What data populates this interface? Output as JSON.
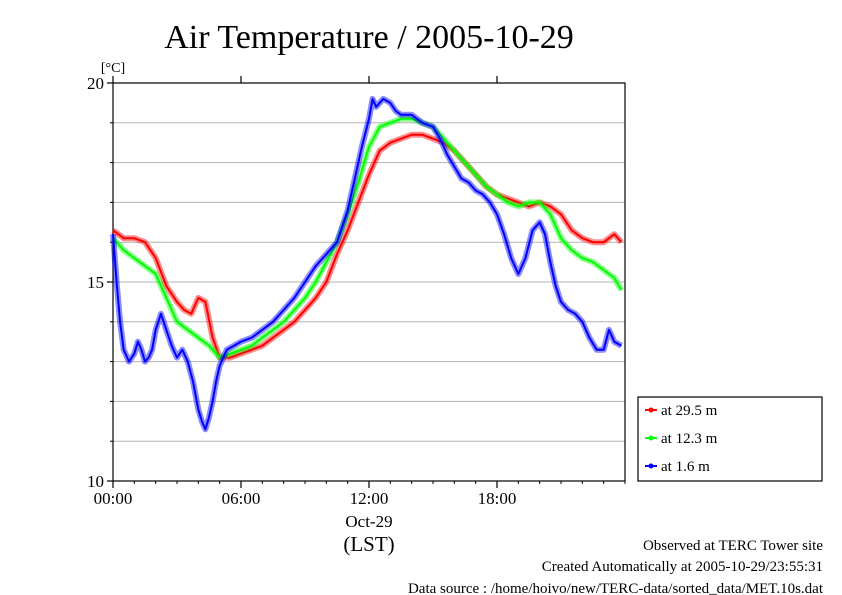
{
  "chart_data": {
    "type": "line",
    "title": "Air Temperature / 2005-10-29",
    "ylabel": "[°C]",
    "xlabel": "(LST)",
    "date_label": "Oct-29",
    "ylim": [
      10,
      20
    ],
    "yticks": [
      "10",
      "15",
      "20"
    ],
    "xlim": [
      "00:00",
      "24:00"
    ],
    "xticks": [
      "00:00",
      "06:00",
      "12:00",
      "18:00"
    ],
    "grid": true,
    "legend_position": "lower-right, outside plot",
    "series": [
      {
        "name": "at 29.5 m",
        "color": "#ff0000",
        "x": [
          "00:00",
          "00:30",
          "01:00",
          "01:30",
          "02:00",
          "02:30",
          "03:00",
          "03:20",
          "03:40",
          "04:00",
          "04:20",
          "04:40",
          "05:00",
          "05:30",
          "06:00",
          "06:30",
          "07:00",
          "07:30",
          "08:00",
          "08:30",
          "09:00",
          "09:30",
          "10:00",
          "10:30",
          "11:00",
          "11:30",
          "12:00",
          "12:30",
          "13:00",
          "13:30",
          "14:00",
          "14:30",
          "15:00",
          "15:30",
          "16:00",
          "16:30",
          "17:00",
          "17:30",
          "18:00",
          "18:30",
          "19:00",
          "19:30",
          "20:00",
          "20:30",
          "21:00",
          "21:30",
          "22:00",
          "22:30",
          "23:00",
          "23:30",
          "23:50"
        ],
        "values": [
          16.3,
          16.1,
          16.1,
          16.0,
          15.6,
          14.9,
          14.5,
          14.3,
          14.2,
          14.6,
          14.5,
          13.6,
          13.1,
          13.1,
          13.2,
          13.3,
          13.4,
          13.6,
          13.8,
          14.0,
          14.3,
          14.6,
          15.0,
          15.7,
          16.3,
          17.0,
          17.7,
          18.3,
          18.5,
          18.6,
          18.7,
          18.7,
          18.6,
          18.5,
          18.3,
          18.0,
          17.7,
          17.4,
          17.2,
          17.1,
          17.0,
          16.9,
          17.0,
          16.9,
          16.7,
          16.3,
          16.1,
          16.0,
          16.0,
          16.2,
          16.0
        ]
      },
      {
        "name": "at 12.3 m",
        "color": "#00ff00",
        "x": [
          "00:00",
          "00:30",
          "01:00",
          "01:30",
          "02:00",
          "02:30",
          "03:00",
          "03:30",
          "04:00",
          "04:30",
          "05:00",
          "05:30",
          "06:00",
          "06:30",
          "07:00",
          "07:30",
          "08:00",
          "08:30",
          "09:00",
          "09:30",
          "10:00",
          "10:30",
          "11:00",
          "11:30",
          "12:00",
          "12:30",
          "13:00",
          "13:30",
          "14:00",
          "14:30",
          "15:00",
          "15:30",
          "16:00",
          "16:30",
          "17:00",
          "17:30",
          "18:00",
          "18:30",
          "19:00",
          "19:30",
          "20:00",
          "20:30",
          "21:00",
          "21:30",
          "22:00",
          "22:30",
          "23:00",
          "23:30",
          "23:50"
        ],
        "values": [
          16.1,
          15.8,
          15.6,
          15.4,
          15.2,
          14.6,
          14.0,
          13.8,
          13.6,
          13.4,
          13.1,
          13.2,
          13.3,
          13.4,
          13.6,
          13.8,
          14.0,
          14.3,
          14.6,
          15.0,
          15.5,
          16.0,
          16.7,
          17.5,
          18.4,
          18.9,
          19.0,
          19.1,
          19.1,
          19.0,
          18.9,
          18.6,
          18.3,
          18.0,
          17.7,
          17.4,
          17.2,
          17.0,
          16.9,
          17.0,
          17.0,
          16.7,
          16.1,
          15.8,
          15.6,
          15.5,
          15.3,
          15.1,
          14.8
        ]
      },
      {
        "name": "at 1.6 m",
        "color": "#0000ff",
        "x": [
          "00:00",
          "00:10",
          "00:20",
          "00:30",
          "00:45",
          "01:00",
          "01:10",
          "01:20",
          "01:30",
          "01:40",
          "01:50",
          "02:00",
          "02:15",
          "02:30",
          "02:45",
          "03:00",
          "03:15",
          "03:30",
          "03:45",
          "04:00",
          "04:10",
          "04:20",
          "04:30",
          "04:40",
          "04:50",
          "05:00",
          "05:20",
          "05:40",
          "06:00",
          "06:30",
          "07:00",
          "07:30",
          "08:00",
          "08:30",
          "09:00",
          "09:30",
          "10:00",
          "10:30",
          "11:00",
          "11:20",
          "11:40",
          "12:00",
          "12:10",
          "12:20",
          "12:40",
          "13:00",
          "13:15",
          "13:30",
          "14:00",
          "14:30",
          "15:00",
          "15:20",
          "15:40",
          "16:00",
          "16:20",
          "16:40",
          "17:00",
          "17:20",
          "17:40",
          "18:00",
          "18:20",
          "18:40",
          "19:00",
          "19:20",
          "19:40",
          "20:00",
          "20:15",
          "20:30",
          "20:45",
          "21:00",
          "21:20",
          "21:40",
          "22:00",
          "22:20",
          "22:40",
          "23:00",
          "23:15",
          "23:30",
          "23:50"
        ],
        "values": [
          16.2,
          15.0,
          14.0,
          13.3,
          13.0,
          13.2,
          13.5,
          13.3,
          13.0,
          13.1,
          13.3,
          13.8,
          14.2,
          13.8,
          13.4,
          13.1,
          13.3,
          13.0,
          12.5,
          11.8,
          11.5,
          11.3,
          11.6,
          12.0,
          12.5,
          12.9,
          13.3,
          13.4,
          13.5,
          13.6,
          13.8,
          14.0,
          14.3,
          14.6,
          15.0,
          15.4,
          15.7,
          16.0,
          16.8,
          17.6,
          18.4,
          19.1,
          19.6,
          19.4,
          19.6,
          19.5,
          19.3,
          19.2,
          19.2,
          19.0,
          18.9,
          18.6,
          18.2,
          17.9,
          17.6,
          17.5,
          17.3,
          17.2,
          17.0,
          16.7,
          16.2,
          15.6,
          15.2,
          15.6,
          16.3,
          16.5,
          16.2,
          15.5,
          14.9,
          14.5,
          14.3,
          14.2,
          14.0,
          13.6,
          13.3,
          13.3,
          13.8,
          13.5,
          13.4
        ]
      }
    ]
  },
  "footer": {
    "site": "Observed at TERC Tower site",
    "created": "Created Automatically at 2005-10-29/23:55:31",
    "source": "Data source : /home/hoivo/new/TERC-data/sorted_data/MET.10s.dat"
  }
}
